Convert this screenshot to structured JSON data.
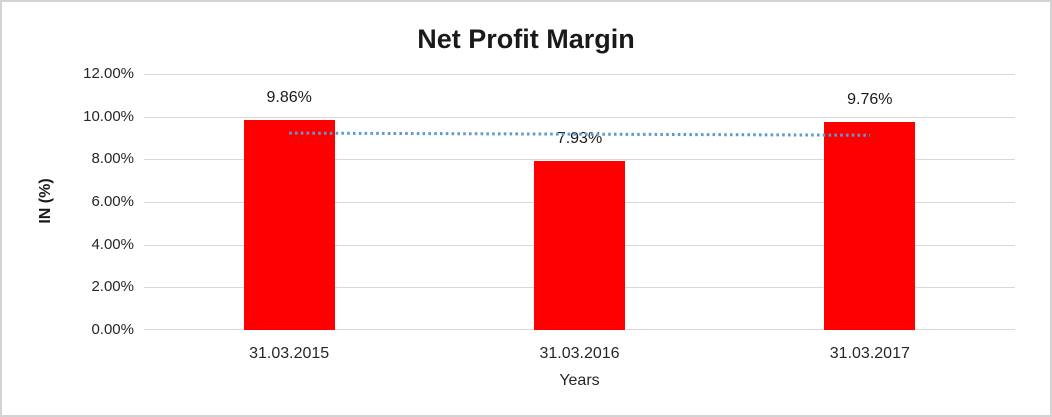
{
  "chart_data": {
    "type": "bar",
    "title": "Net Profit Margin",
    "xlabel": "Years",
    "ylabel": "IN (%)",
    "categories": [
      "31.03.2015",
      "31.03.2016",
      "31.03.2017"
    ],
    "values": [
      9.86,
      7.93,
      9.76
    ],
    "value_labels": [
      "9.86%",
      "7.93%",
      "9.76%"
    ],
    "ylim": [
      0,
      12
    ],
    "ytick_step": 2,
    "ytick_labels": [
      "0.00%",
      "2.00%",
      "4.00%",
      "6.00%",
      "8.00%",
      "10.00%",
      "12.00%"
    ],
    "grid": true,
    "legend": "none",
    "bar_color": "#ff0000",
    "gridline_color": "#d9d9d9",
    "trendline": {
      "type": "linear",
      "style": "dotted",
      "color": "#5b9bd5",
      "start_value": 9.23,
      "end_value": 9.13
    }
  }
}
